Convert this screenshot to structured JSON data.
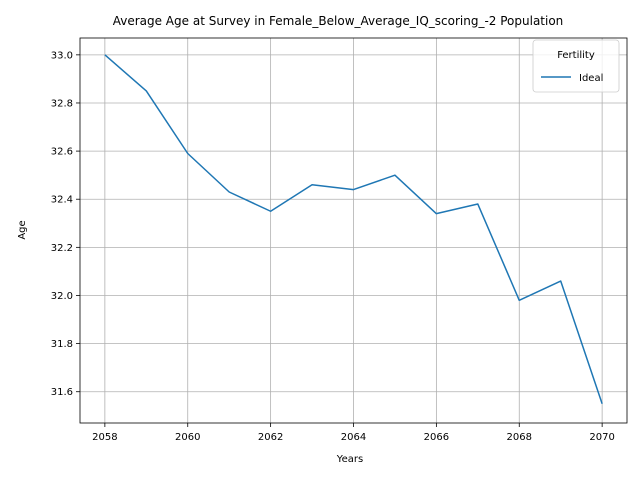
{
  "chart_data": {
    "type": "line",
    "title": "Average Age at Survey in Female_Below_Average_IQ_scoring_-2 Population",
    "xlabel": "Years",
    "ylabel": "Age",
    "xlim": [
      2057.4,
      2070.6
    ],
    "ylim": [
      31.47,
      33.07
    ],
    "xticks": [
      2058,
      2060,
      2062,
      2064,
      2066,
      2068,
      2070
    ],
    "yticks": [
      31.6,
      31.8,
      32.0,
      32.2,
      32.4,
      32.6,
      32.8,
      33.0
    ],
    "xtick_labels": [
      "2058",
      "2060",
      "2062",
      "2064",
      "2066",
      "2068",
      "2070"
    ],
    "ytick_labels": [
      "31.6",
      "31.8",
      "32.0",
      "32.2",
      "32.4",
      "32.6",
      "32.8",
      "33.0"
    ],
    "grid": true,
    "legend": {
      "title": "Fertility",
      "placement": "top-right"
    },
    "x": [
      2058,
      2059,
      2060,
      2061,
      2062,
      2063,
      2064,
      2065,
      2066,
      2067,
      2068,
      2069,
      2070
    ],
    "series": [
      {
        "name": "Ideal",
        "color": "#1f77b4",
        "values": [
          33.0,
          32.85,
          32.59,
          32.43,
          32.35,
          32.46,
          32.44,
          32.5,
          32.34,
          32.38,
          31.98,
          32.06,
          31.55
        ]
      }
    ]
  }
}
